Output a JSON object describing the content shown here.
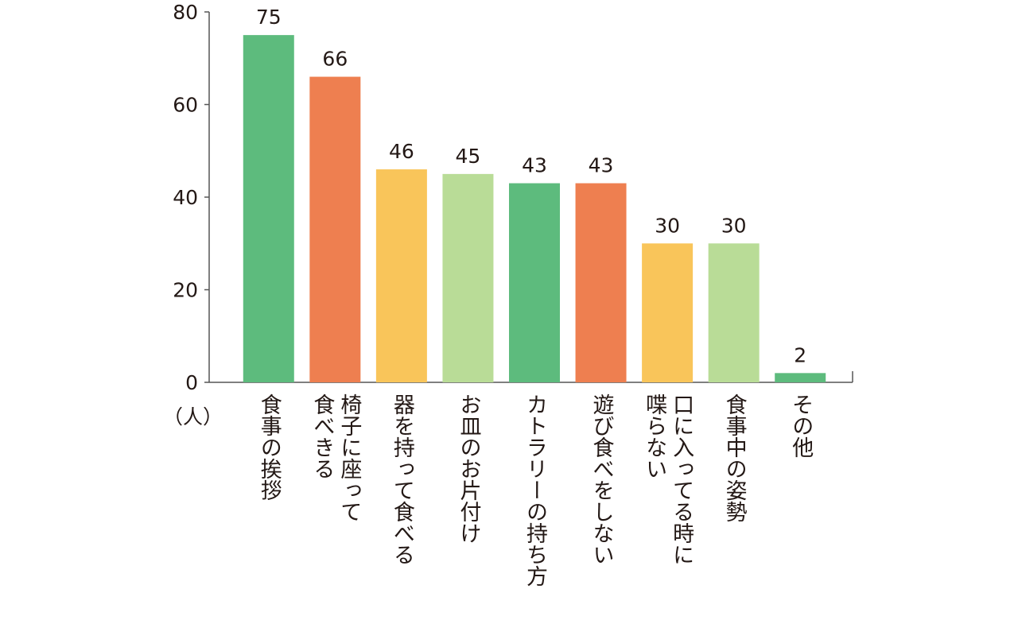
{
  "chart_data": {
    "type": "bar",
    "y_unit": "（人）",
    "categories": [
      "食事の挨拶",
      "椅子に座って\n食べきる",
      "器を持って食べる",
      "お皿のお片付け",
      "カトラリーの持ち方",
      "遊び食べをしない",
      "口に入ってる時に\n喋らない",
      "食事中の姿勢",
      "その他"
    ],
    "values": [
      75,
      66,
      46,
      45,
      43,
      43,
      30,
      30,
      2
    ],
    "colors": [
      "#5dbb7d",
      "#ee7f50",
      "#f9c55a",
      "#b9dc97",
      "#5dbb7d",
      "#ee7f50",
      "#f9c55a",
      "#b9dc97",
      "#5dbb7d"
    ],
    "ylim": [
      0,
      80
    ],
    "yticks": [
      0,
      20,
      40,
      60,
      80
    ],
    "grid": false
  }
}
